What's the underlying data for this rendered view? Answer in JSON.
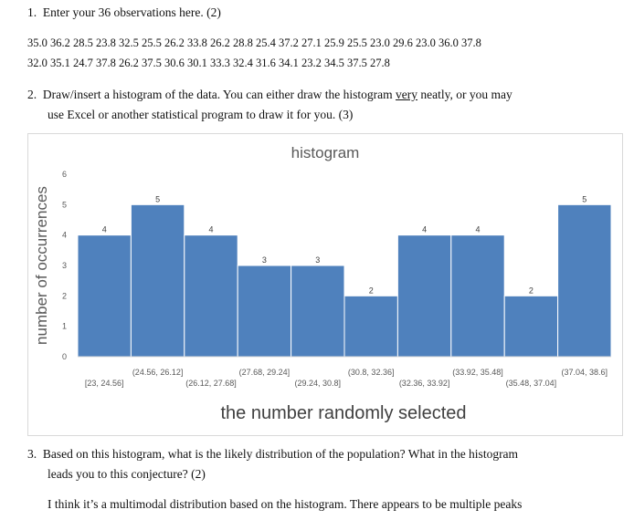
{
  "q1": {
    "number": "1.",
    "text": "Enter your 36 observations here.  (2)"
  },
  "observations": {
    "line1": "35.0 36.2 28.5 23.8 32.5 25.5 26.2 33.8 26.2 28.8 25.4 37.2 27.1 25.9 25.5 23.0 29.6 23.0 36.0 37.8",
    "line2": "32.0 35.1 24.7 37.8 26.2 37.5 30.6 30.1 33.3 32.4 31.6 34.1 23.2 34.5 37.5 27.8"
  },
  "q2": {
    "number": "2.",
    "text_a": "Draw/insert a histogram of the data.  You can either draw the histogram ",
    "emph": "very",
    "text_b": " neatly, or you may",
    "line2": "use Excel or another statistical program to draw it for you.  (3)"
  },
  "q3": {
    "number": "3.",
    "line1": "Based on this histogram, what is the likely distribution of the population?  What in the histogram",
    "line2": "leads you to this conjecture? (2)"
  },
  "answer": "I think it’s a multimodal distribution based on the histogram. There appears to be multiple peaks",
  "chart_data": {
    "type": "bar",
    "title": "histogram",
    "xlabel": "the number randomly selected",
    "ylabel": "number of occurrences",
    "categories": [
      "[23, 24.56]",
      "(24.56, 26.12]",
      "(26.12, 27.68]",
      "(27.68, 29.24]",
      "(29.24, 30.8]",
      "(30.8, 32.36]",
      "(32.36, 33.92]",
      "(33.92, 35.48]",
      "(35.48, 37.04]",
      "(37.04, 38.6]"
    ],
    "values": [
      4,
      5,
      4,
      3,
      3,
      2,
      4,
      4,
      2,
      5
    ],
    "ylim": [
      0,
      6
    ],
    "yticks": [
      0,
      1,
      2,
      3,
      4,
      5,
      6
    ],
    "bar_color": "#4f81bd",
    "grid": false,
    "data_labels": true
  }
}
